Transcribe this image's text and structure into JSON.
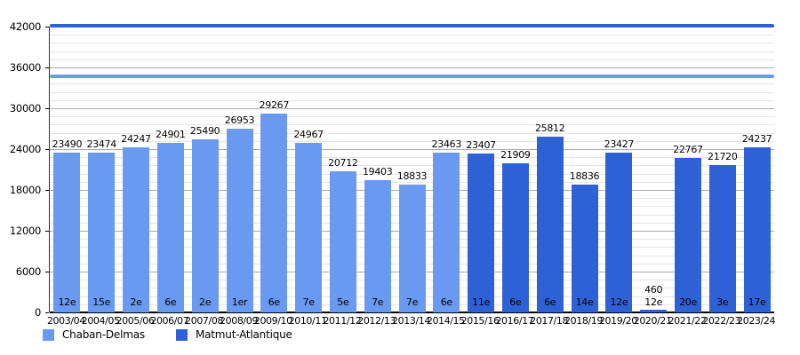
{
  "chart_data": {
    "type": "bar",
    "title": "",
    "xlabel": "",
    "ylabel": "",
    "ylim": [
      0,
      42000
    ],
    "y_major_step": 6000,
    "y_minor_step": 1200,
    "grid": "major+minor",
    "categories": [
      "2003/04",
      "2004/05",
      "2005/06",
      "2006/07",
      "2007/08",
      "2008/09",
      "2009/10",
      "2010/11",
      "2011/12",
      "2012/13",
      "2013/14",
      "2014/15",
      "2015/16",
      "2016/17",
      "2017/18",
      "2018/19",
      "2019/20",
      "2020/21",
      "2021/22",
      "2022/23",
      "2023/24"
    ],
    "values": [
      23490,
      23474,
      24247,
      24901,
      25490,
      26953,
      29267,
      24967,
      20712,
      19403,
      18833,
      23463,
      23407,
      21909,
      25812,
      18836,
      23427,
      460,
      22767,
      21720,
      24237
    ],
    "rank_labels": [
      "12e",
      "15e",
      "2e",
      "6e",
      "2e",
      "1er",
      "6e",
      "7e",
      "5e",
      "7e",
      "7e",
      "6e",
      "11e",
      "6e",
      "6e",
      "14e",
      "12e",
      "12e",
      "20e",
      "3e",
      "17e"
    ],
    "bar_series": [
      "Chaban-Delmas",
      "Chaban-Delmas",
      "Chaban-Delmas",
      "Chaban-Delmas",
      "Chaban-Delmas",
      "Chaban-Delmas",
      "Chaban-Delmas",
      "Chaban-Delmas",
      "Chaban-Delmas",
      "Chaban-Delmas",
      "Chaban-Delmas",
      "Chaban-Delmas",
      "Matmut-Atlantique",
      "Matmut-Atlantique",
      "Matmut-Atlantique",
      "Matmut-Atlantique",
      "Matmut-Atlantique",
      "Matmut-Atlantique",
      "Matmut-Atlantique",
      "Matmut-Atlantique",
      "Matmut-Atlantique"
    ],
    "series_colors": {
      "Chaban-Delmas": "#6999f0",
      "Matmut-Atlantique": "#2f61d6"
    },
    "reference_lines": [
      {
        "name": "matmut-atlantique-capacity-line",
        "value": 42100,
        "color": "#2f61d6"
      },
      {
        "name": "chaban-delmas-capacity-line",
        "value": 34700,
        "color": "#6999f0"
      }
    ],
    "y_tick_labels": [
      "0",
      "6000",
      "12000",
      "18000",
      "24000",
      "30000",
      "36000",
      "42000"
    ],
    "legend": {
      "position": "bottom-left",
      "items": [
        {
          "label": "Chaban-Delmas",
          "color": "#6999f0"
        },
        {
          "label": "Matmut-Atlantique",
          "color": "#2f61d6"
        }
      ]
    }
  }
}
